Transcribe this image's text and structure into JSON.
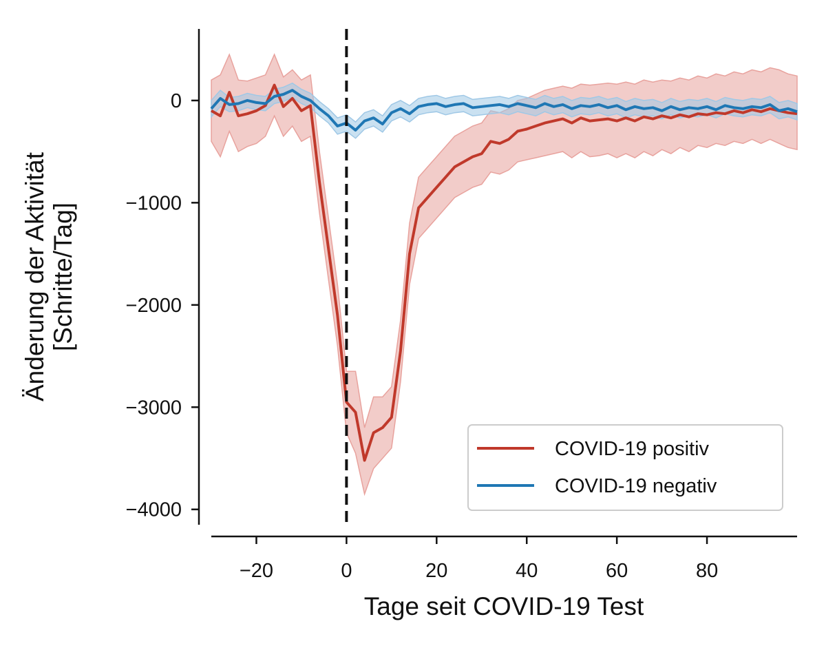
{
  "chart_data": {
    "type": "line",
    "title": "",
    "xlabel": "Tage seit COVID-19 Test",
    "ylabel_lines": [
      "Änderung der Aktivität",
      "[Schritte/Tag]"
    ],
    "xlim": [
      -30,
      100
    ],
    "ylim": [
      -4150,
      700
    ],
    "x_ticks": [
      -20,
      0,
      20,
      40,
      60,
      80
    ],
    "x_tick_labels": [
      "−20",
      "0",
      "20",
      "40",
      "60",
      "80"
    ],
    "y_ticks": [
      0,
      -1000,
      -2000,
      -3000,
      -4000
    ],
    "y_tick_labels": [
      "0",
      "−1000",
      "−2000",
      "−3000",
      "−4000"
    ],
    "vline_x": 0,
    "vline_style": "dashed",
    "grid": false,
    "legend_position": "lower-right",
    "series": [
      {
        "name": "COVID-19 positiv",
        "color": "#c0392b",
        "band_color": "#e8a29d",
        "x": [
          -30,
          -28,
          -26,
          -24,
          -22,
          -20,
          -18,
          -16,
          -14,
          -12,
          -10,
          -8,
          -6,
          -4,
          -2,
          0,
          2,
          4,
          6,
          8,
          10,
          12,
          14,
          16,
          18,
          20,
          22,
          24,
          26,
          28,
          30,
          32,
          34,
          36,
          38,
          40,
          42,
          44,
          46,
          48,
          50,
          52,
          54,
          56,
          58,
          60,
          62,
          64,
          66,
          68,
          70,
          72,
          74,
          76,
          78,
          80,
          82,
          84,
          86,
          88,
          90,
          92,
          94,
          96,
          98,
          100
        ],
        "y": [
          -100,
          -150,
          80,
          -150,
          -130,
          -100,
          -50,
          150,
          -60,
          20,
          -100,
          -50,
          -800,
          -1450,
          -2100,
          -2950,
          -3050,
          -3520,
          -3250,
          -3200,
          -3100,
          -2450,
          -1500,
          -1050,
          -950,
          -850,
          -750,
          -650,
          -600,
          -550,
          -520,
          -400,
          -420,
          -380,
          -300,
          -280,
          -250,
          -220,
          -200,
          -180,
          -220,
          -170,
          -200,
          -190,
          -180,
          -200,
          -170,
          -200,
          -160,
          -180,
          -150,
          -170,
          -140,
          -160,
          -130,
          -140,
          -120,
          -130,
          -100,
          -120,
          -90,
          -110,
          -80,
          -100,
          -120,
          -130
        ],
        "band_lo": [
          -400,
          -550,
          -300,
          -500,
          -450,
          -420,
          -350,
          -150,
          -350,
          -250,
          -400,
          -350,
          -1100,
          -1750,
          -2400,
          -3250,
          -3450,
          -3850,
          -3600,
          -3500,
          -3400,
          -2750,
          -1800,
          -1350,
          -1250,
          -1150,
          -1050,
          -950,
          -900,
          -850,
          -820,
          -700,
          -720,
          -680,
          -600,
          -580,
          -560,
          -540,
          -520,
          -500,
          -560,
          -500,
          -550,
          -540,
          -520,
          -560,
          -520,
          -560,
          -500,
          -540,
          -480,
          -520,
          -460,
          -500,
          -440,
          -460,
          -420,
          -440,
          -400,
          -420,
          -380,
          -420,
          -380,
          -420,
          -460,
          -480
        ],
        "band_hi": [
          200,
          250,
          450,
          200,
          190,
          220,
          250,
          450,
          230,
          300,
          200,
          250,
          -500,
          -1150,
          -1800,
          -2650,
          -2650,
          -3200,
          -2900,
          -2900,
          -2800,
          -2150,
          -1200,
          -750,
          -650,
          -550,
          -450,
          -350,
          -300,
          -250,
          -220,
          -100,
          -120,
          -80,
          0,
          20,
          60,
          100,
          120,
          140,
          120,
          160,
          150,
          160,
          170,
          160,
          180,
          160,
          200,
          180,
          200,
          190,
          220,
          200,
          240,
          220,
          260,
          240,
          280,
          260,
          300,
          280,
          320,
          300,
          260,
          240
        ]
      },
      {
        "name": "COVID-19 negativ",
        "color": "#1f77b4",
        "band_color": "#9fc8e6",
        "x": [
          -30,
          -28,
          -26,
          -24,
          -22,
          -20,
          -18,
          -16,
          -14,
          -12,
          -10,
          -8,
          -6,
          -4,
          -2,
          0,
          2,
          4,
          6,
          8,
          10,
          12,
          14,
          16,
          18,
          20,
          22,
          24,
          26,
          28,
          30,
          32,
          34,
          36,
          38,
          40,
          42,
          44,
          46,
          48,
          50,
          52,
          54,
          56,
          58,
          60,
          62,
          64,
          66,
          68,
          70,
          72,
          74,
          76,
          78,
          80,
          82,
          84,
          86,
          88,
          90,
          92,
          94,
          96,
          98,
          100
        ],
        "y": [
          -80,
          20,
          -40,
          -30,
          0,
          -20,
          -30,
          40,
          60,
          100,
          40,
          0,
          -80,
          -150,
          -250,
          -220,
          -290,
          -200,
          -170,
          -230,
          -120,
          -80,
          -130,
          -60,
          -40,
          -30,
          -60,
          -40,
          -30,
          -70,
          -60,
          -50,
          -40,
          -60,
          -30,
          -50,
          -70,
          -30,
          -60,
          -40,
          -80,
          -50,
          -60,
          -40,
          -70,
          -50,
          -90,
          -60,
          -80,
          -70,
          -100,
          -60,
          -90,
          -70,
          -80,
          -60,
          -90,
          -50,
          -70,
          -80,
          -60,
          -70,
          -40,
          -100,
          -80,
          -110
        ],
        "band_lo": [
          -160,
          -60,
          -110,
          -100,
          -70,
          -90,
          -100,
          -30,
          -10,
          30,
          -30,
          -70,
          -150,
          -220,
          -330,
          -300,
          -370,
          -280,
          -250,
          -310,
          -200,
          -160,
          -210,
          -140,
          -120,
          -110,
          -140,
          -120,
          -110,
          -150,
          -140,
          -130,
          -120,
          -140,
          -110,
          -130,
          -150,
          -110,
          -140,
          -120,
          -160,
          -130,
          -140,
          -120,
          -150,
          -130,
          -170,
          -140,
          -160,
          -150,
          -180,
          -140,
          -170,
          -150,
          -160,
          -140,
          -170,
          -130,
          -150,
          -160,
          -140,
          -150,
          -120,
          -180,
          -160,
          -190
        ],
        "band_hi": [
          0,
          100,
          30,
          40,
          70,
          50,
          40,
          110,
          130,
          170,
          110,
          70,
          -10,
          -80,
          -170,
          -140,
          -210,
          -120,
          -90,
          -150,
          -40,
          0,
          -50,
          20,
          40,
          50,
          20,
          40,
          50,
          10,
          20,
          30,
          40,
          20,
          50,
          30,
          10,
          50,
          20,
          40,
          0,
          30,
          20,
          40,
          10,
          30,
          -10,
          20,
          0,
          10,
          -20,
          20,
          -10,
          10,
          0,
          20,
          -10,
          30,
          10,
          0,
          20,
          10,
          40,
          -20,
          0,
          -30
        ]
      }
    ]
  }
}
